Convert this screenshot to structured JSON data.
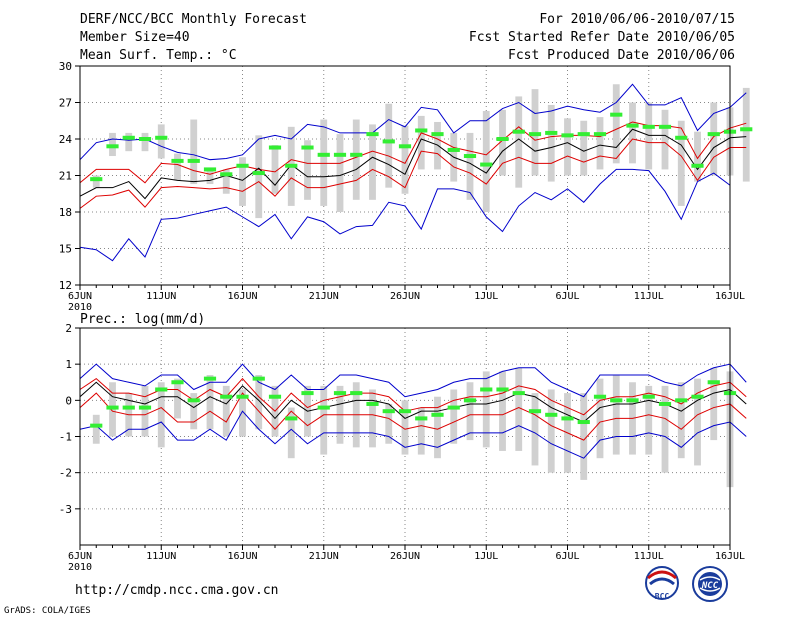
{
  "header": {
    "title": "DERF/NCC/BCC Monthly Forecast",
    "member_size": "Member Size=40",
    "variable": "Mean Surf. Temp.: °C",
    "forecast_period": "For 2010/06/06-2010/07/15",
    "started_refer_date": "Fcst Started Refer Date 2010/06/05",
    "produced_date": "Fcst Produced Date 2010/06/06"
  },
  "footer": {
    "url": "http://cmdp.ncc.cma.gov.cn",
    "credit": "GrADS: COLA/IGES",
    "logo_left": "BCC",
    "logo_right": "NCC"
  },
  "colors": {
    "spread_line": "#0000cc",
    "mean_line": "#000000",
    "sd_line": "#dd0000",
    "box": "#d0d0d0",
    "median": "#33ee33",
    "grid": "#888888"
  },
  "chart_data": [
    {
      "type": "line",
      "title": "Mean Surf. Temp.: °C",
      "xlabel": "",
      "ylabel": "",
      "xlim": [
        0,
        40
      ],
      "ylim": [
        12,
        30
      ],
      "yticks": [
        12,
        15,
        18,
        21,
        24,
        27,
        30
      ],
      "xticks": [
        {
          "day": 0,
          "label": "6JUN",
          "sub": "2010"
        },
        {
          "day": 5,
          "label": "11JUN"
        },
        {
          "day": 10,
          "label": "16JUN"
        },
        {
          "day": 15,
          "label": "21JUN"
        },
        {
          "day": 20,
          "label": "26JUN"
        },
        {
          "day": 25,
          "label": "1JUL"
        },
        {
          "day": 30,
          "label": "6JUL"
        },
        {
          "day": 35,
          "label": "11JUL"
        },
        {
          "day": 40,
          "label": "16JUL"
        }
      ],
      "grid": true,
      "series": [
        {
          "name": "max",
          "color": "#0000cc",
          "values": [
            22.3,
            23.7,
            24.0,
            23.9,
            24.0,
            23.4,
            22.9,
            22.7,
            22.3,
            22.4,
            22.7,
            24.0,
            24.3,
            24.0,
            25.2,
            25.0,
            24.5,
            24.5,
            24.5,
            25.6,
            25.0,
            26.6,
            26.4,
            24.5,
            25.5,
            25.5,
            26.5,
            27.0,
            26.1,
            26.3,
            26.7,
            26.4,
            26.2,
            27.0,
            28.5,
            26.8,
            26.8,
            27.4,
            24.7,
            26.1,
            26.6,
            27.8
          ]
        },
        {
          "name": "mean_plus_sd",
          "color": "#dd0000",
          "values": [
            20.4,
            21.5,
            21.5,
            21.5,
            20.4,
            22.0,
            21.9,
            21.4,
            21.1,
            21.5,
            21.8,
            21.5,
            21.3,
            22.3,
            22.0,
            22.0,
            22.0,
            22.5,
            23.0,
            22.6,
            22.0,
            24.5,
            24.0,
            23.3,
            23.0,
            22.7,
            23.9,
            25.0,
            23.9,
            24.2,
            24.3,
            24.3,
            24.2,
            24.8,
            25.4,
            25.1,
            25.1,
            24.9,
            22.4,
            24.2,
            24.9,
            25.3
          ]
        },
        {
          "name": "mean",
          "color": "#000000",
          "values": [
            19.3,
            20.0,
            20.0,
            20.5,
            19.1,
            20.8,
            20.6,
            20.5,
            20.6,
            21.0,
            20.6,
            21.6,
            20.2,
            21.9,
            20.9,
            20.9,
            21.0,
            21.5,
            22.5,
            21.9,
            21.1,
            24.0,
            23.5,
            22.5,
            22.0,
            21.2,
            23.0,
            24.0,
            23.0,
            23.3,
            23.7,
            23.0,
            23.5,
            23.3,
            24.8,
            24.3,
            24.3,
            23.5,
            21.5,
            23.3,
            24.1,
            24.2
          ]
        },
        {
          "name": "mean_minus_sd",
          "color": "#dd0000",
          "values": [
            18.3,
            19.3,
            19.4,
            19.8,
            18.4,
            20.0,
            20.1,
            20.0,
            19.9,
            20.0,
            19.7,
            20.5,
            19.3,
            20.8,
            20.0,
            20.0,
            20.3,
            20.6,
            21.5,
            20.9,
            20.0,
            23.0,
            22.8,
            21.7,
            21.2,
            20.3,
            22.0,
            22.5,
            22.0,
            22.0,
            22.6,
            22.1,
            22.6,
            22.4,
            24.0,
            23.7,
            23.7,
            22.6,
            20.6,
            22.5,
            23.3,
            23.3
          ]
        },
        {
          "name": "min",
          "color": "#0000cc",
          "values": [
            15.1,
            14.9,
            14.0,
            15.8,
            14.3,
            17.4,
            17.5,
            17.8,
            18.1,
            18.4,
            17.6,
            16.8,
            17.8,
            15.8,
            17.6,
            17.2,
            16.2,
            16.8,
            16.9,
            18.8,
            18.5,
            16.6,
            19.9,
            19.9,
            19.6,
            17.6,
            16.4,
            18.5,
            19.6,
            19.0,
            19.9,
            18.8,
            20.3,
            21.5,
            21.5,
            21.4,
            19.7,
            17.4,
            20.5,
            21.2,
            20.2
          ]
        },
        {
          "name": "median",
          "color": "#33ee33",
          "values": [
            20.7,
            23.4,
            24.1,
            24.0,
            24.1,
            22.2,
            22.2,
            21.5,
            21.1,
            21.8,
            21.2,
            23.3,
            21.8,
            23.3,
            22.7,
            22.7,
            22.7,
            24.4,
            23.8,
            23.4,
            24.7,
            24.4,
            23.1,
            22.6,
            21.9,
            24.0,
            24.6,
            24.4,
            24.5,
            24.3,
            24.4,
            24.4,
            26.0,
            25.1,
            25.0,
            25.0,
            24.1,
            21.8,
            24.4,
            24.6,
            24.8
          ]
        },
        {
          "name": "box_high",
          "color": "#d0d0d0",
          "values": [
            21.0,
            24.5,
            24.5,
            24.5,
            25.2,
            22.8,
            25.6,
            21.6,
            21.5,
            22.5,
            24.3,
            23.5,
            25.0,
            23.9,
            25.6,
            24.4,
            25.6,
            25.2,
            26.9,
            25.1,
            25.9,
            25.4,
            24.5,
            24.5,
            26.3,
            26.4,
            27.5,
            28.1,
            26.8,
            25.7,
            25.5,
            25.8,
            28.5,
            27.0,
            27.0,
            26.4,
            25.5,
            24.6,
            27.0,
            26.6,
            28.2
          ]
        },
        {
          "name": "box_low",
          "color": "#d0d0d0",
          "values": [
            20.0,
            22.6,
            23.0,
            23.0,
            22.4,
            20.6,
            20.3,
            20.3,
            19.5,
            18.5,
            17.5,
            19.5,
            18.5,
            19.0,
            18.5,
            18.0,
            19.0,
            19.0,
            20.0,
            19.5,
            21.5,
            21.5,
            20.5,
            19.0,
            18.0,
            21.0,
            20.0,
            21.0,
            20.5,
            21.0,
            21.0,
            21.5,
            22.0,
            22.0,
            21.5,
            21.5,
            18.5,
            20.5,
            21.0,
            21.0,
            20.5
          ]
        }
      ]
    },
    {
      "type": "line",
      "title": "Prec.: log(mm/d)",
      "xlabel": "",
      "ylabel": "",
      "xlim": [
        0,
        40
      ],
      "ylim": [
        -4,
        2
      ],
      "yticks": [
        -3,
        -2,
        -1,
        0,
        1,
        2
      ],
      "xticks": [
        {
          "day": 0,
          "label": "6JUN",
          "sub": "2010"
        },
        {
          "day": 5,
          "label": "11JUN"
        },
        {
          "day": 10,
          "label": "16JUN"
        },
        {
          "day": 15,
          "label": "21JUN"
        },
        {
          "day": 20,
          "label": "26JUN"
        },
        {
          "day": 25,
          "label": "1JUL"
        },
        {
          "day": 30,
          "label": "6JUL"
        },
        {
          "day": 35,
          "label": "11JUL"
        },
        {
          "day": 40,
          "label": "16JUL"
        }
      ],
      "grid": true,
      "series": [
        {
          "name": "max",
          "color": "#0000cc",
          "values": [
            0.6,
            1.0,
            0.6,
            0.5,
            0.4,
            0.7,
            0.7,
            0.3,
            0.5,
            0.5,
            1.0,
            0.5,
            0.3,
            0.7,
            0.3,
            0.3,
            0.7,
            0.7,
            0.6,
            0.5,
            0.1,
            0.2,
            0.3,
            0.5,
            0.6,
            0.6,
            0.8,
            0.9,
            0.9,
            0.5,
            0.3,
            0.1,
            0.7,
            0.7,
            0.7,
            0.7,
            0.5,
            0.4,
            0.7,
            0.9,
            1.0,
            0.5
          ]
        },
        {
          "name": "mean_plus_sd",
          "color": "#dd0000",
          "values": [
            0.3,
            0.6,
            0.2,
            0.2,
            0.1,
            0.3,
            0.3,
            0.0,
            0.3,
            0.1,
            0.6,
            0.1,
            -0.3,
            0.2,
            -0.2,
            0.0,
            0.1,
            0.2,
            0.2,
            0.1,
            -0.3,
            -0.2,
            -0.2,
            0.0,
            0.1,
            0.1,
            0.2,
            0.4,
            0.3,
            0.0,
            -0.2,
            -0.4,
            0.0,
            0.1,
            0.1,
            0.2,
            0.1,
            -0.1,
            0.2,
            0.4,
            0.5,
            0.1
          ]
        },
        {
          "name": "mean",
          "color": "#000000",
          "values": [
            0.1,
            0.5,
            0.1,
            0.0,
            -0.1,
            0.1,
            0.1,
            -0.2,
            0.1,
            -0.1,
            0.4,
            0.0,
            -0.5,
            0.0,
            -0.3,
            -0.2,
            -0.1,
            0.0,
            0.0,
            -0.1,
            -0.5,
            -0.3,
            -0.3,
            -0.2,
            -0.1,
            -0.1,
            0.0,
            0.2,
            0.1,
            -0.2,
            -0.4,
            -0.6,
            -0.2,
            -0.1,
            -0.1,
            0.0,
            -0.1,
            -0.3,
            0.0,
            0.2,
            0.3,
            -0.1
          ]
        },
        {
          "name": "mean_minus_sd",
          "color": "#dd0000",
          "values": [
            -0.2,
            0.2,
            -0.3,
            -0.4,
            -0.4,
            -0.2,
            -0.6,
            -0.6,
            -0.3,
            -0.6,
            0.2,
            -0.3,
            -0.8,
            -0.3,
            -0.7,
            -0.4,
            -0.4,
            -0.4,
            -0.4,
            -0.5,
            -0.8,
            -0.7,
            -0.8,
            -0.6,
            -0.4,
            -0.4,
            -0.4,
            -0.2,
            -0.4,
            -0.7,
            -0.9,
            -1.1,
            -0.6,
            -0.5,
            -0.5,
            -0.4,
            -0.5,
            -0.8,
            -0.4,
            -0.2,
            -0.1,
            -0.5
          ]
        },
        {
          "name": "min",
          "color": "#0000cc",
          "values": [
            -0.8,
            -0.7,
            -1.1,
            -0.8,
            -0.8,
            -0.6,
            -1.1,
            -1.1,
            -0.8,
            -1.1,
            -0.3,
            -0.8,
            -1.2,
            -0.8,
            -1.2,
            -0.9,
            -0.9,
            -0.9,
            -0.9,
            -1.0,
            -1.3,
            -1.2,
            -1.3,
            -1.1,
            -0.9,
            -0.9,
            -0.9,
            -0.7,
            -0.9,
            -1.2,
            -1.4,
            -1.6,
            -1.1,
            -1.0,
            -1.0,
            -0.9,
            -1.0,
            -1.3,
            -0.9,
            -0.7,
            -0.6,
            -1.0
          ]
        },
        {
          "name": "median",
          "color": "#33ee33",
          "values": [
            -0.7,
            -0.2,
            -0.2,
            -0.2,
            0.3,
            0.5,
            0.0,
            0.6,
            0.1,
            0.1,
            0.6,
            0.1,
            -0.5,
            0.2,
            -0.2,
            0.2,
            0.2,
            -0.1,
            -0.3,
            -0.3,
            -0.5,
            -0.4,
            -0.2,
            0.0,
            0.3,
            0.3,
            0.2,
            -0.3,
            -0.4,
            -0.5,
            -0.6,
            0.1,
            0.0,
            0.0,
            0.1,
            -0.1,
            0.0,
            0.1,
            0.5,
            0.2
          ]
        },
        {
          "name": "box_high",
          "color": "#d0d0d0",
          "values": [
            -0.4,
            0.5,
            0.2,
            0.4,
            0.5,
            0.6,
            0.2,
            0.7,
            0.4,
            0.3,
            0.7,
            0.4,
            -0.2,
            0.4,
            0.4,
            0.4,
            0.5,
            0.3,
            -0.1,
            0.0,
            -0.2,
            0.1,
            0.3,
            0.5,
            0.8,
            0.8,
            0.9,
            0.2,
            0.3,
            0.2,
            0.2,
            0.6,
            0.7,
            0.5,
            0.4,
            0.4,
            0.5,
            0.6,
            0.9,
            0.8
          ]
        },
        {
          "name": "box_low",
          "color": "#d0d0d0",
          "values": [
            -1.2,
            -1.0,
            -1.0,
            -1.0,
            -1.3,
            -0.5,
            -0.8,
            -0.8,
            -1.0,
            -1.0,
            -0.8,
            -1.0,
            -1.6,
            -1.0,
            -1.5,
            -1.2,
            -1.3,
            -1.3,
            -1.2,
            -1.5,
            -1.5,
            -1.6,
            -1.2,
            -1.1,
            -1.3,
            -1.4,
            -1.4,
            -1.8,
            -2.0,
            -2.0,
            -2.2,
            -1.6,
            -1.5,
            -1.5,
            -1.5,
            -2.0,
            -1.6,
            -1.8,
            -1.1,
            -2.4
          ]
        }
      ]
    }
  ]
}
